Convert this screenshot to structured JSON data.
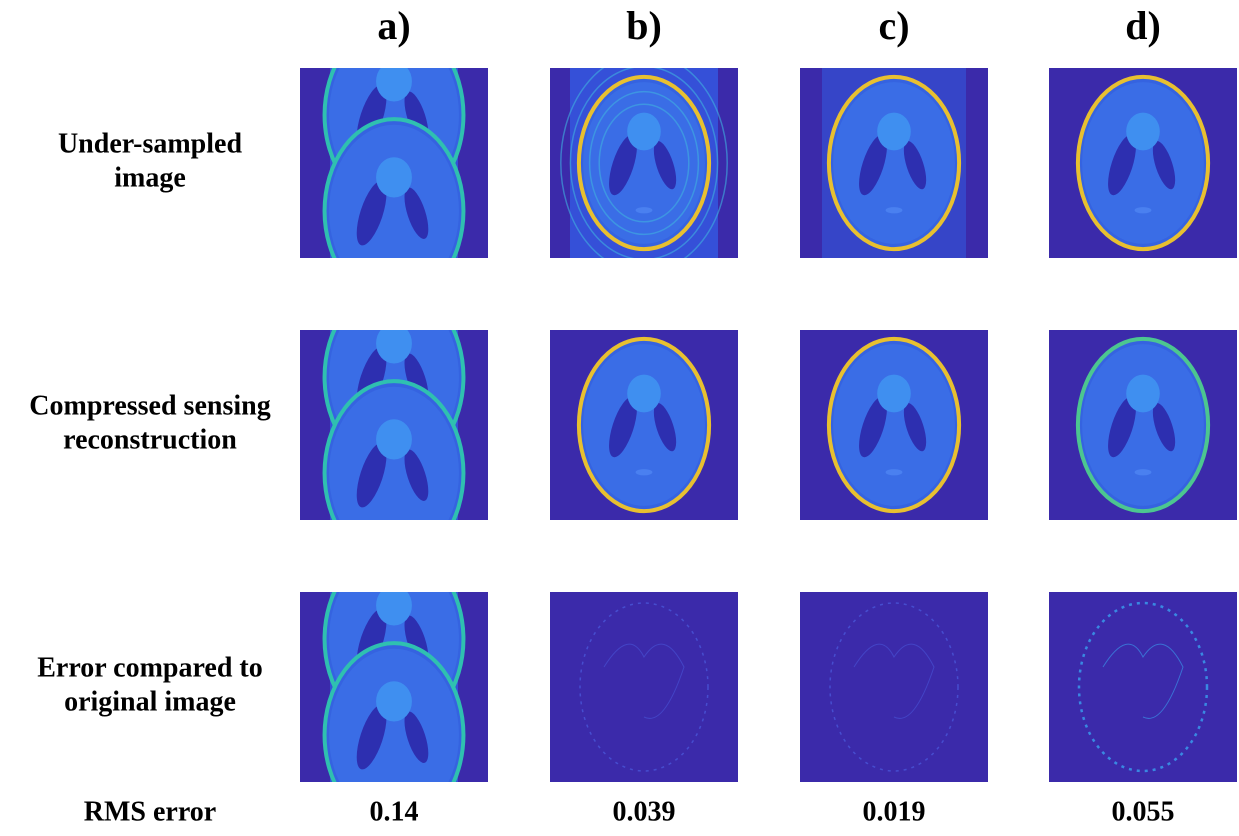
{
  "columns": [
    "a)",
    "b)",
    "c)",
    "d)"
  ],
  "rows": [
    {
      "label": [
        "Under-sampled",
        "image"
      ]
    },
    {
      "label": [
        "Compressed sensing",
        "reconstruction"
      ]
    },
    {
      "label": [
        "Error compared to",
        "original image"
      ]
    }
  ],
  "rms_error": {
    "label": "RMS error",
    "values": [
      "0.14",
      "0.039",
      "0.019",
      "0.055"
    ]
  }
}
